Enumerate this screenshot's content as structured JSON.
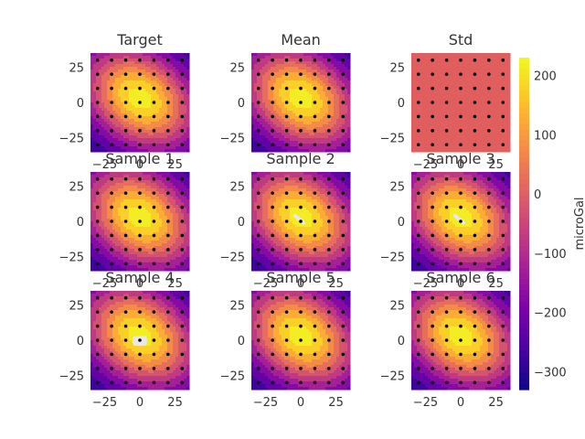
{
  "chart_data": [
    {
      "type": "heatmap",
      "title": "Target",
      "field": "gaussian",
      "xticks": [
        "−25",
        "0",
        "25"
      ],
      "yticks": [
        "25",
        "0",
        "−25"
      ],
      "xlim": [
        -35,
        35
      ],
      "ylim": [
        -35,
        35
      ]
    },
    {
      "type": "heatmap",
      "title": "Mean",
      "field": "gaussian",
      "xticks": [],
      "yticks": [
        "25",
        "0",
        "−25"
      ],
      "xlim": [
        -35,
        35
      ],
      "ylim": [
        -35,
        35
      ]
    },
    {
      "type": "heatmap",
      "title": "Std",
      "field": "uniform",
      "uniform_color": "#e05f5e",
      "xticks": [
        "−25",
        "0",
        "25"
      ],
      "yticks": [
        "25",
        "0",
        "−25"
      ],
      "xlim": [
        -35,
        35
      ],
      "ylim": [
        -35,
        35
      ]
    },
    {
      "type": "heatmap",
      "title": "Sample 1",
      "field": "gaussian",
      "xticks": [
        "−25",
        "0",
        "25"
      ],
      "yticks": [
        "25",
        "0",
        "−25"
      ],
      "xlim": [
        -35,
        35
      ],
      "ylim": [
        -35,
        35
      ]
    },
    {
      "type": "heatmap",
      "title": "Sample 2",
      "field": "gaussian",
      "artifact": "streak",
      "xticks": [
        "−25",
        "0",
        "25"
      ],
      "yticks": [
        "25",
        "0",
        "−25"
      ],
      "xlim": [
        -35,
        35
      ],
      "ylim": [
        -35,
        35
      ]
    },
    {
      "type": "heatmap",
      "title": "Sample 3",
      "field": "gaussian",
      "artifact": "streak",
      "xticks": [
        "−25",
        "0",
        "25"
      ],
      "yticks": [
        "25",
        "0",
        "−25"
      ],
      "xlim": [
        -35,
        35
      ],
      "ylim": [
        -35,
        35
      ]
    },
    {
      "type": "heatmap",
      "title": "Sample 4",
      "field": "gaussian",
      "artifact": "blob",
      "xticks": [
        "−25",
        "0",
        "25"
      ],
      "yticks": [
        "25",
        "0",
        "−25"
      ],
      "xlim": [
        -35,
        35
      ],
      "ylim": [
        -35,
        35
      ]
    },
    {
      "type": "heatmap",
      "title": "Sample 5",
      "field": "gaussian",
      "xticks": [
        "−25",
        "0",
        "25"
      ],
      "yticks": [
        "25",
        "0",
        "−25"
      ],
      "xlim": [
        -35,
        35
      ],
      "ylim": [
        -35,
        35
      ]
    },
    {
      "type": "heatmap",
      "title": "Sample 6",
      "field": "gaussian",
      "xticks": [
        "−25",
        "0",
        "25"
      ],
      "yticks": [
        "25",
        "0",
        "−25"
      ],
      "xlim": [
        -35,
        35
      ],
      "ylim": [
        -35,
        35
      ]
    }
  ],
  "field": {
    "peak": 225,
    "center": [
      0,
      3
    ],
    "major_std": 30,
    "minor_std": 22,
    "rotation_deg": -35,
    "levels": [
      -300,
      -250,
      -200,
      -150,
      -100,
      -50,
      0,
      50,
      100,
      150,
      200
    ],
    "artifact_color": "#e8e8ec"
  },
  "stations": {
    "x": [
      -30,
      -20,
      -10,
      0,
      10,
      20,
      30
    ],
    "y": [
      -30,
      -20,
      -10,
      0,
      10,
      20,
      30
    ],
    "dot_color": "#000000"
  },
  "colorbar": {
    "label": "microGal",
    "vmin": -330,
    "vmax": 230,
    "ticks": [
      "200",
      "100",
      "0",
      "−100",
      "−200",
      "−300"
    ],
    "tick_values": [
      200,
      100,
      0,
      -100,
      -200,
      -300
    ],
    "colormap": "plasma"
  }
}
